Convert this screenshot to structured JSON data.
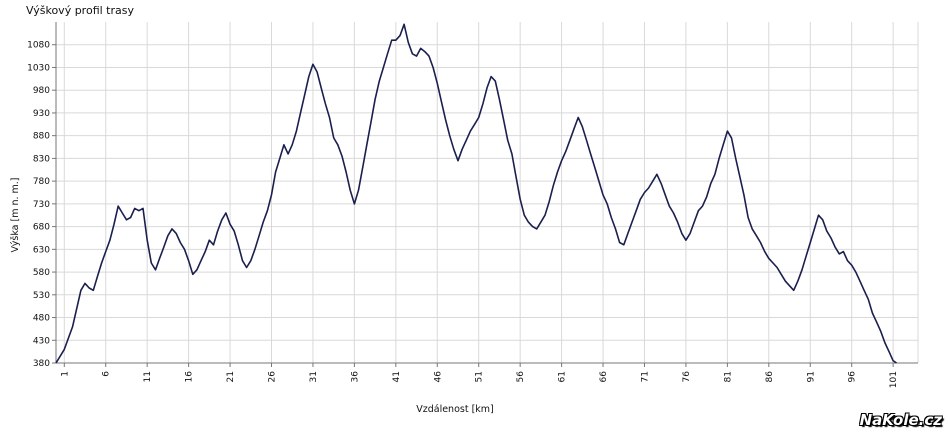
{
  "chart_data": {
    "type": "line",
    "title": "Výškový profil trasy",
    "xlabel": "Vzdálenost [km]",
    "ylabel": "Výška [m n. m.]",
    "xlim": [
      0,
      104
    ],
    "ylim": [
      380,
      1130
    ],
    "x_ticks": [
      1,
      6,
      11,
      16,
      21,
      26,
      31,
      36,
      41,
      46,
      51,
      56,
      61,
      66,
      71,
      76,
      81,
      86,
      91,
      96,
      101
    ],
    "y_ticks": [
      380,
      430,
      480,
      530,
      580,
      630,
      680,
      730,
      780,
      830,
      880,
      930,
      980,
      1030,
      1080
    ],
    "grid": true,
    "series": [
      {
        "color": "#1a1f4e",
        "points": [
          [
            0,
            380
          ],
          [
            1,
            410
          ],
          [
            2,
            460
          ],
          [
            3,
            540
          ],
          [
            3.5,
            555
          ],
          [
            4,
            545
          ],
          [
            4.5,
            540
          ],
          [
            5,
            570
          ],
          [
            5.5,
            600
          ],
          [
            6,
            625
          ],
          [
            6.5,
            650
          ],
          [
            7,
            685
          ],
          [
            7.5,
            725
          ],
          [
            8,
            710
          ],
          [
            8.5,
            695
          ],
          [
            9,
            700
          ],
          [
            9.5,
            720
          ],
          [
            10,
            715
          ],
          [
            10.5,
            720
          ],
          [
            11,
            650
          ],
          [
            11.5,
            600
          ],
          [
            12,
            585
          ],
          [
            12.5,
            610
          ],
          [
            13,
            635
          ],
          [
            13.5,
            660
          ],
          [
            14,
            675
          ],
          [
            14.5,
            665
          ],
          [
            15,
            645
          ],
          [
            15.5,
            630
          ],
          [
            16,
            605
          ],
          [
            16.5,
            575
          ],
          [
            17,
            585
          ],
          [
            17.5,
            605
          ],
          [
            18,
            625
          ],
          [
            18.5,
            650
          ],
          [
            19,
            640
          ],
          [
            19.5,
            670
          ],
          [
            20,
            695
          ],
          [
            20.5,
            710
          ],
          [
            21,
            685
          ],
          [
            21.5,
            670
          ],
          [
            22,
            640
          ],
          [
            22.5,
            605
          ],
          [
            23,
            590
          ],
          [
            23.5,
            605
          ],
          [
            24,
            630
          ],
          [
            24.5,
            660
          ],
          [
            25,
            690
          ],
          [
            25.5,
            715
          ],
          [
            26,
            750
          ],
          [
            26.5,
            800
          ],
          [
            27,
            830
          ],
          [
            27.5,
            860
          ],
          [
            28,
            840
          ],
          [
            28.5,
            860
          ],
          [
            29,
            890
          ],
          [
            29.5,
            930
          ],
          [
            30,
            970
          ],
          [
            30.5,
            1010
          ],
          [
            31,
            1037
          ],
          [
            31.5,
            1020
          ],
          [
            32,
            985
          ],
          [
            32.5,
            950
          ],
          [
            33,
            920
          ],
          [
            33.5,
            875
          ],
          [
            34,
            860
          ],
          [
            34.5,
            835
          ],
          [
            35,
            800
          ],
          [
            35.5,
            760
          ],
          [
            36,
            730
          ],
          [
            36.5,
            760
          ],
          [
            37,
            810
          ],
          [
            37.5,
            860
          ],
          [
            38,
            910
          ],
          [
            38.5,
            960
          ],
          [
            39,
            1000
          ],
          [
            39.5,
            1030
          ],
          [
            40,
            1060
          ],
          [
            40.5,
            1090
          ],
          [
            41,
            1090
          ],
          [
            41.5,
            1100
          ],
          [
            42,
            1125
          ],
          [
            42.5,
            1085
          ],
          [
            43,
            1060
          ],
          [
            43.5,
            1055
          ],
          [
            44,
            1072
          ],
          [
            44.5,
            1065
          ],
          [
            45,
            1055
          ],
          [
            45.5,
            1030
          ],
          [
            46,
            995
          ],
          [
            46.5,
            955
          ],
          [
            47,
            915
          ],
          [
            47.5,
            880
          ],
          [
            48,
            850
          ],
          [
            48.5,
            825
          ],
          [
            49,
            850
          ],
          [
            49.5,
            870
          ],
          [
            50,
            890
          ],
          [
            50.5,
            905
          ],
          [
            51,
            920
          ],
          [
            51.5,
            950
          ],
          [
            52,
            985
          ],
          [
            52.5,
            1010
          ],
          [
            53,
            1000
          ],
          [
            53.5,
            960
          ],
          [
            54,
            915
          ],
          [
            54.5,
            870
          ],
          [
            55,
            840
          ],
          [
            55.5,
            790
          ],
          [
            56,
            740
          ],
          [
            56.5,
            705
          ],
          [
            57,
            690
          ],
          [
            57.5,
            680
          ],
          [
            58,
            675
          ],
          [
            58.5,
            690
          ],
          [
            59,
            705
          ],
          [
            59.5,
            735
          ],
          [
            60,
            770
          ],
          [
            60.5,
            800
          ],
          [
            61,
            825
          ],
          [
            61.5,
            845
          ],
          [
            62,
            870
          ],
          [
            62.5,
            895
          ],
          [
            63,
            920
          ],
          [
            63.5,
            900
          ],
          [
            64,
            870
          ],
          [
            64.5,
            840
          ],
          [
            65,
            810
          ],
          [
            65.5,
            780
          ],
          [
            66,
            750
          ],
          [
            66.5,
            730
          ],
          [
            67,
            700
          ],
          [
            67.5,
            675
          ],
          [
            68,
            645
          ],
          [
            68.5,
            640
          ],
          [
            69,
            665
          ],
          [
            69.5,
            690
          ],
          [
            70,
            715
          ],
          [
            70.5,
            740
          ],
          [
            71,
            755
          ],
          [
            71.5,
            765
          ],
          [
            72,
            780
          ],
          [
            72.5,
            795
          ],
          [
            73,
            775
          ],
          [
            73.5,
            750
          ],
          [
            74,
            725
          ],
          [
            74.5,
            710
          ],
          [
            75,
            690
          ],
          [
            75.5,
            665
          ],
          [
            76,
            650
          ],
          [
            76.5,
            665
          ],
          [
            77,
            690
          ],
          [
            77.5,
            715
          ],
          [
            78,
            725
          ],
          [
            78.5,
            745
          ],
          [
            79,
            775
          ],
          [
            79.5,
            795
          ],
          [
            80,
            830
          ],
          [
            80.5,
            860
          ],
          [
            81,
            890
          ],
          [
            81.5,
            875
          ],
          [
            82,
            830
          ],
          [
            82.5,
            790
          ],
          [
            83,
            750
          ],
          [
            83.5,
            700
          ],
          [
            84,
            675
          ],
          [
            84.5,
            660
          ],
          [
            85,
            645
          ],
          [
            85.5,
            625
          ],
          [
            86,
            610
          ],
          [
            86.5,
            600
          ],
          [
            87,
            590
          ],
          [
            87.5,
            575
          ],
          [
            88,
            560
          ],
          [
            88.5,
            550
          ],
          [
            89,
            540
          ],
          [
            89.5,
            560
          ],
          [
            90,
            585
          ],
          [
            90.5,
            615
          ],
          [
            91,
            645
          ],
          [
            91.5,
            675
          ],
          [
            92,
            705
          ],
          [
            92.5,
            695
          ],
          [
            93,
            670
          ],
          [
            93.5,
            655
          ],
          [
            94,
            635
          ],
          [
            94.5,
            620
          ],
          [
            95,
            625
          ],
          [
            95.5,
            605
          ],
          [
            96,
            595
          ],
          [
            96.5,
            580
          ],
          [
            97,
            560
          ],
          [
            97.5,
            540
          ],
          [
            98,
            520
          ],
          [
            98.5,
            490
          ],
          [
            99,
            470
          ],
          [
            99.5,
            450
          ],
          [
            100,
            425
          ],
          [
            100.5,
            405
          ],
          [
            101,
            385
          ],
          [
            101.4,
            380
          ]
        ]
      }
    ]
  },
  "watermark": "NaKole.cz"
}
